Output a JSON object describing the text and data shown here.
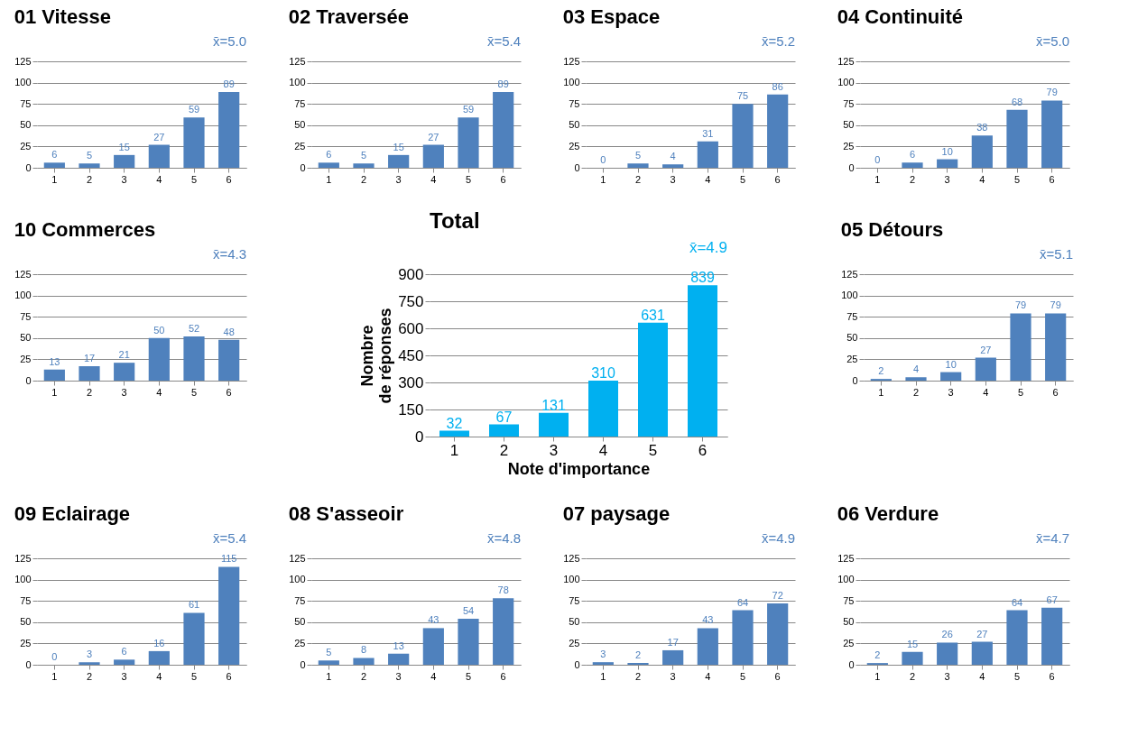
{
  "chart_data": [
    {
      "type": "bar",
      "title": "01 Vitesse",
      "annotations": [
        "x̄=5.0"
      ],
      "categories": [
        "1",
        "2",
        "3",
        "4",
        "5",
        "6"
      ],
      "values": [
        6,
        5,
        15,
        27,
        59,
        89
      ],
      "color": "#4f81bd",
      "ylim": [
        0,
        125
      ],
      "yticks": [
        0,
        25,
        50,
        75,
        100,
        125
      ],
      "grid": "y",
      "data_labels": true
    },
    {
      "type": "bar",
      "title": "02 Traversée",
      "annotations": [
        "x̄=5.4"
      ],
      "categories": [
        "1",
        "2",
        "3",
        "4",
        "5",
        "6"
      ],
      "values": [
        6,
        5,
        15,
        27,
        59,
        89
      ],
      "color": "#4f81bd",
      "ylim": [
        0,
        125
      ],
      "yticks": [
        0,
        25,
        50,
        75,
        100,
        125
      ],
      "grid": "y",
      "data_labels": true
    },
    {
      "type": "bar",
      "title": "03 Espace",
      "annotations": [
        "x̄=5.2"
      ],
      "categories": [
        "1",
        "2",
        "3",
        "4",
        "5",
        "6"
      ],
      "values": [
        0,
        5,
        4,
        31,
        75,
        86
      ],
      "color": "#4f81bd",
      "ylim": [
        0,
        125
      ],
      "yticks": [
        0,
        25,
        50,
        75,
        100,
        125
      ],
      "grid": "y",
      "data_labels": true
    },
    {
      "type": "bar",
      "title": "04 Continuité",
      "annotations": [
        "x̄=5.0"
      ],
      "categories": [
        "1",
        "2",
        "3",
        "4",
        "5",
        "6"
      ],
      "values": [
        0,
        6,
        10,
        38,
        68,
        79
      ],
      "color": "#4f81bd",
      "ylim": [
        0,
        125
      ],
      "yticks": [
        0,
        25,
        50,
        75,
        100,
        125
      ],
      "grid": "y",
      "data_labels": true
    },
    {
      "type": "bar",
      "title": "10 Commerces",
      "annotations": [
        "x̄=4.3"
      ],
      "categories": [
        "1",
        "2",
        "3",
        "4",
        "5",
        "6"
      ],
      "values": [
        13,
        17,
        21,
        50,
        52,
        48
      ],
      "color": "#4f81bd",
      "ylim": [
        0,
        125
      ],
      "yticks": [
        0,
        25,
        50,
        75,
        100,
        125
      ],
      "grid": "y",
      "data_labels": true
    },
    {
      "type": "bar",
      "title": "Total",
      "annotations": [
        "x̄=4.9"
      ],
      "xlabel": "Note d'importance",
      "ylabel": "Nombre\nde réponses",
      "categories": [
        "1",
        "2",
        "3",
        "4",
        "5",
        "6"
      ],
      "values": [
        32,
        67,
        131,
        310,
        631,
        839
      ],
      "color": "#00b0f0",
      "ylim": [
        0,
        900
      ],
      "yticks": [
        0,
        150,
        300,
        450,
        600,
        750,
        900
      ],
      "grid": "y",
      "data_labels": true
    },
    {
      "type": "bar",
      "title": "05 Détours",
      "annotations": [
        "x̄=5.1"
      ],
      "categories": [
        "1",
        "2",
        "3",
        "4",
        "5",
        "6"
      ],
      "values": [
        2,
        4,
        10,
        27,
        79,
        79
      ],
      "color": "#4f81bd",
      "ylim": [
        0,
        125
      ],
      "yticks": [
        0,
        25,
        50,
        75,
        100,
        125
      ],
      "grid": "y",
      "data_labels": true
    },
    {
      "type": "bar",
      "title": "09 Eclairage",
      "annotations": [
        "x̄=5.4"
      ],
      "categories": [
        "1",
        "2",
        "3",
        "4",
        "5",
        "6"
      ],
      "values": [
        0,
        3,
        6,
        16,
        61,
        115
      ],
      "color": "#4f81bd",
      "ylim": [
        0,
        125
      ],
      "yticks": [
        0,
        25,
        50,
        75,
        100,
        125
      ],
      "grid": "y",
      "data_labels": true
    },
    {
      "type": "bar",
      "title": "08 S'asseoir",
      "annotations": [
        "x̄=4.8"
      ],
      "categories": [
        "1",
        "2",
        "3",
        "4",
        "5",
        "6"
      ],
      "values": [
        5,
        8,
        13,
        43,
        54,
        78
      ],
      "color": "#4f81bd",
      "ylim": [
        0,
        125
      ],
      "yticks": [
        0,
        25,
        50,
        75,
        100,
        125
      ],
      "grid": "y",
      "data_labels": true
    },
    {
      "type": "bar",
      "title": "07 paysage",
      "annotations": [
        "x̄=4.9"
      ],
      "categories": [
        "1",
        "2",
        "3",
        "4",
        "5",
        "6"
      ],
      "values": [
        3,
        2,
        17,
        43,
        64,
        72
      ],
      "color": "#4f81bd",
      "ylim": [
        0,
        125
      ],
      "yticks": [
        0,
        25,
        50,
        75,
        100,
        125
      ],
      "grid": "y",
      "data_labels": true
    },
    {
      "type": "bar",
      "title": "06 Verdure",
      "annotations": [
        "x̄=4.7"
      ],
      "categories": [
        "1",
        "2",
        "3",
        "4",
        "5",
        "6"
      ],
      "values": [
        2,
        15,
        26,
        27,
        64,
        67
      ],
      "color": "#4f81bd",
      "ylim": [
        0,
        125
      ],
      "yticks": [
        0,
        25,
        50,
        75,
        100,
        125
      ],
      "grid": "y",
      "data_labels": true
    }
  ]
}
